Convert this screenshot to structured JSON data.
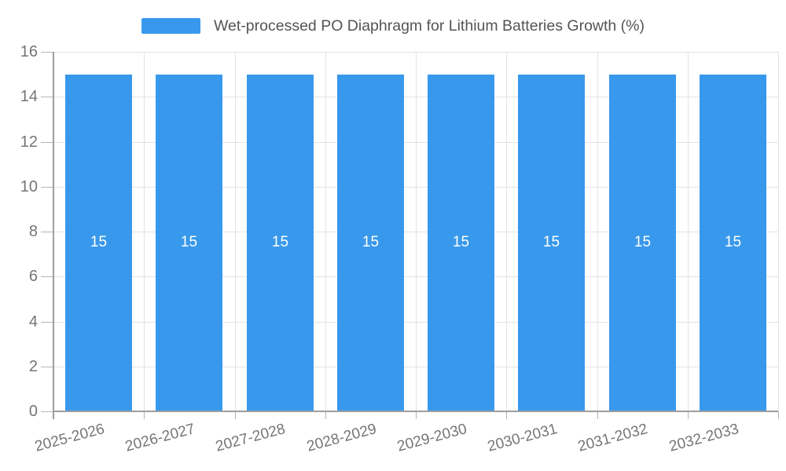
{
  "legend": {
    "label": "Wet-processed PO Diaphragm for Lithium Batteries Growth (%)"
  },
  "chart_data": {
    "type": "bar",
    "title": "Wet-processed PO Diaphragm for Lithium Batteries Growth (%)",
    "categories": [
      "2025-2026",
      "2026-2027",
      "2027-2028",
      "2028-2029",
      "2029-2030",
      "2030-2031",
      "2031-2032",
      "2032-2033"
    ],
    "values": [
      15,
      15,
      15,
      15,
      15,
      15,
      15,
      15
    ],
    "data_labels": [
      "15",
      "15",
      "15",
      "15",
      "15",
      "15",
      "15",
      "15"
    ],
    "xlabel": "",
    "ylabel": "",
    "ylim": [
      0,
      16
    ],
    "ytick_step": 2,
    "ytick_labels": [
      "0",
      "2",
      "4",
      "6",
      "8",
      "10",
      "12",
      "14",
      "16"
    ],
    "grid": true,
    "legend_position": "top-center",
    "x_label_rotation_deg": -15,
    "colors": {
      "bar": "#3899ec",
      "bar_label": "#ffffff",
      "grid": "#e3e3e3",
      "axis": "#9e9e9e",
      "tick": "#b5b5b5",
      "tick_label": "#757575",
      "legend_text": "#545454"
    }
  }
}
